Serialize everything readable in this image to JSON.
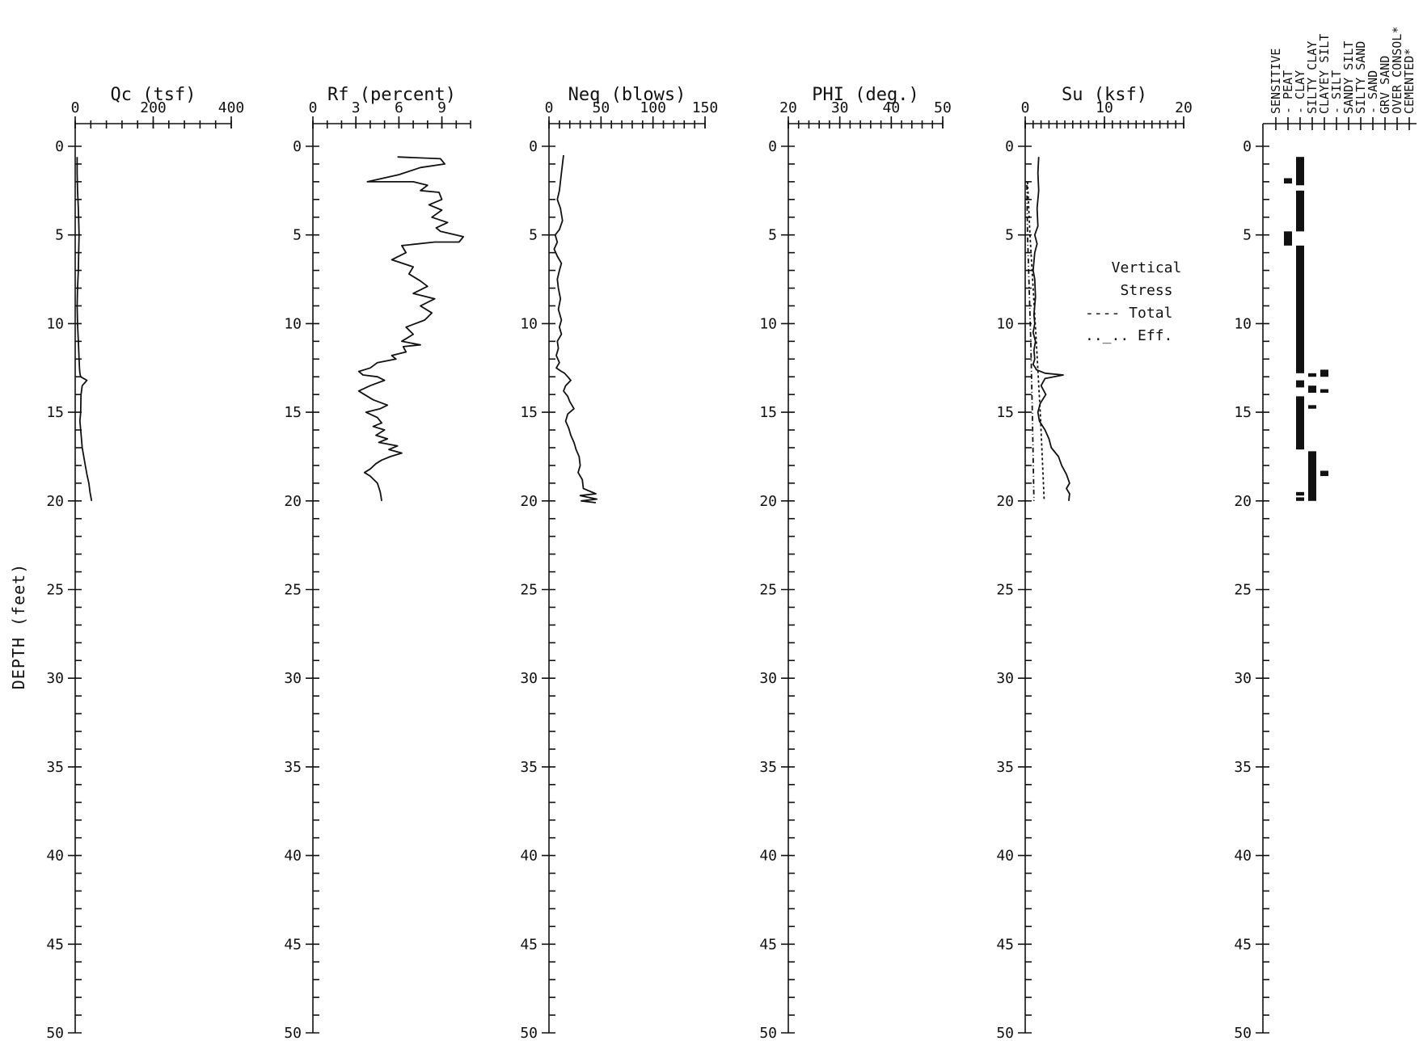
{
  "chart_data": {
    "type": "line",
    "ylabel": "DEPTH (feet)",
    "ylim": [
      0,
      50
    ],
    "yticks": [
      0,
      5,
      10,
      15,
      20,
      25,
      30,
      35,
      40,
      45,
      50
    ],
    "y_inverted": true,
    "panels": [
      {
        "title": "Qc (tsf)",
        "xlim": [
          0,
          400
        ],
        "xticks": [
          0,
          200,
          400
        ],
        "series": [
          {
            "x": [
              5,
              5,
              6,
              8,
              10,
              9,
              8,
              6,
              5,
              6,
              8,
              10,
              11,
              12,
              14,
              30,
              18,
              15,
              14,
              12,
              14,
              18,
              22,
              26,
              30,
              35,
              38,
              42
            ],
            "y": [
              0.6,
              1.5,
              2.5,
              3.5,
              5.0,
              6.0,
              7.0,
              8.0,
              9.0,
              10.0,
              11.0,
              12.0,
              12.5,
              12.8,
              13.0,
              13.2,
              13.5,
              14.0,
              15.0,
              15.5,
              16.0,
              17.0,
              17.5,
              18.0,
              18.5,
              19.0,
              19.5,
              20.0
            ]
          }
        ]
      },
      {
        "title": "Rf (percent)",
        "xlim": [
          0,
          11
        ],
        "xticks": [
          0,
          3,
          6,
          9
        ],
        "series": [
          {
            "x": [
              5.9,
              8.9,
              9.2,
              7.5,
              6.0,
              3.8,
              4.3,
              7.0,
              8.0,
              7.5,
              8.8,
              9.0,
              8.1,
              9.0,
              8.3,
              9.4,
              8.6,
              8.9,
              10.5,
              10.2,
              8.5,
              6.2,
              6.5,
              5.5,
              7.0,
              6.7,
              7.5,
              8.0,
              7.0,
              8.5,
              7.5,
              8.3,
              7.8,
              6.5,
              7.0,
              6.2,
              7.5,
              6.3,
              6.5,
              5.5,
              5.8,
              4.5,
              4.0,
              3.2,
              3.5,
              4.5,
              5.0,
              4.0,
              3.2,
              3.6,
              4.2,
              5.2,
              4.7,
              3.7,
              4.5,
              4.8,
              4.2,
              5.0,
              4.4,
              5.2,
              4.6,
              5.9,
              5.3,
              6.2,
              5.4,
              4.8,
              4.4,
              4.0,
              3.6,
              4.0,
              4.5,
              4.7,
              4.8
            ],
            "y": [
              0.6,
              0.7,
              1.0,
              1.2,
              1.6,
              2.0,
              2.0,
              2.0,
              2.2,
              2.5,
              2.6,
              3.0,
              3.3,
              3.6,
              4.0,
              4.3,
              4.6,
              4.8,
              5.1,
              5.4,
              5.4,
              5.6,
              6.0,
              6.4,
              6.8,
              7.2,
              7.6,
              7.9,
              8.3,
              8.6,
              9.0,
              9.4,
              9.8,
              10.2,
              10.6,
              11.0,
              11.2,
              11.3,
              11.6,
              11.8,
              12.0,
              12.2,
              12.5,
              12.7,
              12.9,
              13.0,
              13.2,
              13.5,
              13.8,
              14.0,
              14.3,
              14.6,
              14.8,
              15.0,
              15.3,
              15.6,
              15.8,
              16.0,
              16.3,
              16.5,
              16.7,
              16.9,
              17.1,
              17.3,
              17.5,
              17.7,
              17.9,
              18.2,
              18.4,
              18.6,
              19.0,
              19.5,
              20.0
            ]
          }
        ]
      },
      {
        "title": "Neq (blows)",
        "xlim": [
          0,
          150
        ],
        "xticks": [
          0,
          50,
          100,
          150
        ],
        "series": [
          {
            "x": [
              14,
              12,
              10,
              8,
              11,
              13,
              10,
              6,
              8,
              5,
              8,
              12,
              10,
              8,
              9,
              11,
              9,
              12,
              10,
              12,
              8,
              9,
              7,
              10,
              7,
              12,
              15,
              18,
              21,
              16,
              14,
              18,
              20,
              24,
              18,
              16,
              19,
              21,
              24,
              26,
              29,
              30,
              28,
              32,
              33,
              45,
              30,
              46,
              31,
              45
            ],
            "y": [
              0.5,
              1.5,
              2.5,
              3.0,
              3.5,
              4.2,
              4.7,
              5.0,
              5.4,
              5.8,
              6.2,
              6.6,
              7.0,
              7.5,
              8.0,
              8.6,
              9.2,
              9.8,
              10.2,
              10.6,
              11.0,
              11.4,
              11.8,
              12.2,
              12.5,
              12.7,
              12.8,
              13.0,
              13.2,
              13.5,
              13.8,
              14.1,
              14.4,
              14.8,
              15.1,
              15.5,
              15.9,
              16.3,
              16.7,
              17.1,
              17.5,
              18.0,
              18.4,
              18.8,
              19.3,
              19.6,
              19.7,
              19.9,
              20.0,
              20.1
            ]
          }
        ]
      },
      {
        "title": "PHI (deg.)",
        "xlim": [
          20,
          50
        ],
        "xticks": [
          20,
          30,
          40,
          50
        ],
        "series": []
      },
      {
        "title": "Su (ksf)",
        "xlim": [
          0,
          20
        ],
        "xticks": [
          0,
          10,
          20
        ],
        "legend": {
          "title": "Vertical Stress",
          "entries": [
            "---- Total",
            ".._.. Eff."
          ]
        },
        "series": [
          {
            "x": [
              1.7,
              1.6,
              1.7,
              1.5,
              1.6,
              1.2,
              1.5,
              1.2,
              1.0,
              1.2,
              1.3,
              1.1,
              1.2,
              1.0,
              1.3,
              1.1,
              1.2,
              1.0,
              1.3,
              1.4,
              2.5,
              4.8,
              2.5,
              2.0,
              2.6,
              1.9,
              1.6,
              1.8,
              2.5,
              3.0,
              3.3,
              4.2,
              4.6,
              5.2,
              5.6,
              5.2,
              5.6,
              5.5
            ],
            "y": [
              0.6,
              1.5,
              2.5,
              3.5,
              4.5,
              5.0,
              5.5,
              6.0,
              7.0,
              7.5,
              8.5,
              9.5,
              10.0,
              10.5,
              11.0,
              11.5,
              12.0,
              12.3,
              12.5,
              12.6,
              12.8,
              12.9,
              13.1,
              13.5,
              14.0,
              14.5,
              15.0,
              15.5,
              16.0,
              16.5,
              17.0,
              17.5,
              18.0,
              18.5,
              19.0,
              19.3,
              19.6,
              20.0
            ]
          },
          {
            "x": [
              0.3,
              0.6,
              1.0,
              1.4,
              1.9,
              2.4
            ],
            "y": [
              2.0,
              5.0,
              8.0,
              11.0,
              15.0,
              20.0
            ]
          },
          {
            "x": [
              0.2,
              0.3,
              0.5,
              0.7,
              0.9,
              1.1
            ],
            "y": [
              2.0,
              5.0,
              8.0,
              11.0,
              15.0,
              20.0
            ]
          }
        ]
      },
      {
        "title": "",
        "type": "categorical-log",
        "categories": [
          "SENSITIVE",
          "- PEAT",
          "- CLAY",
          "SILTY CLAY",
          "CLAYEY SILT",
          "- SILT",
          "SANDY SILT",
          "SILTY SAND",
          "- SAND",
          "GRV SAND",
          "OVER CONSOL*",
          "CEMENTED*"
        ],
        "layers": [
          {
            "category": "- PEAT",
            "top": 1.8,
            "bottom": 2.1
          },
          {
            "category": "- PEAT",
            "top": 4.8,
            "bottom": 5.6
          },
          {
            "category": "- CLAY",
            "top": 0.6,
            "bottom": 2.2
          },
          {
            "category": "- CLAY",
            "top": 2.5,
            "bottom": 4.8
          },
          {
            "category": "- CLAY",
            "top": 5.6,
            "bottom": 12.8
          },
          {
            "category": "- CLAY",
            "top": 13.2,
            "bottom": 13.6
          },
          {
            "category": "- CLAY",
            "top": 14.1,
            "bottom": 17.1
          },
          {
            "category": "- CLAY",
            "top": 19.5,
            "bottom": 19.7
          },
          {
            "category": "- CLAY",
            "top": 19.8,
            "bottom": 20.0
          },
          {
            "category": "SILTY CLAY",
            "top": 12.8,
            "bottom": 13.0
          },
          {
            "category": "SILTY CLAY",
            "top": 13.5,
            "bottom": 13.9
          },
          {
            "category": "SILTY CLAY",
            "top": 14.6,
            "bottom": 14.8
          },
          {
            "category": "SILTY CLAY",
            "top": 17.2,
            "bottom": 20.0
          },
          {
            "category": "CLAYEY SILT",
            "top": 12.6,
            "bottom": 13.0
          },
          {
            "category": "CLAYEY SILT",
            "top": 13.7,
            "bottom": 13.9
          },
          {
            "category": "CLAYEY SILT",
            "top": 18.3,
            "bottom": 18.6
          }
        ]
      }
    ]
  }
}
